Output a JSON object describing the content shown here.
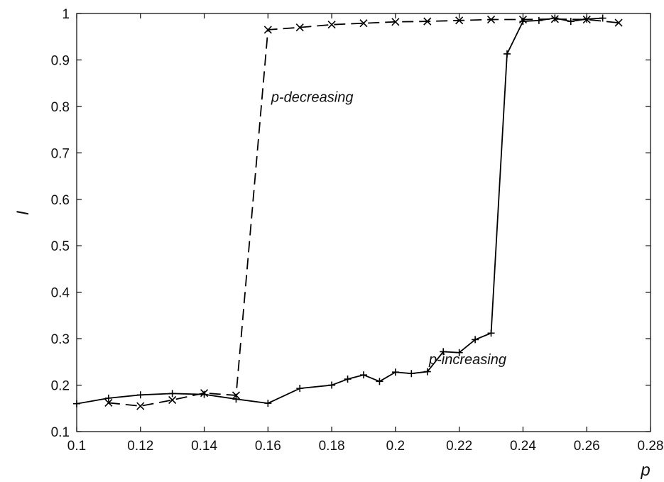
{
  "chart_data": {
    "type": "line",
    "title": "",
    "xlabel": "p",
    "ylabel": "I",
    "xlim": [
      0.1,
      0.28
    ],
    "ylim": [
      0.1,
      1.0
    ],
    "x_ticks": [
      0.1,
      0.12,
      0.14,
      0.16,
      0.18,
      0.2,
      0.22,
      0.24,
      0.26,
      0.28
    ],
    "x_tick_labels": [
      "0.1",
      "0.12",
      "0.14",
      "0.16",
      "0.18",
      "0.2",
      "0.22",
      "0.24",
      "0.26",
      "0.28"
    ],
    "y_ticks": [
      0.1,
      0.2,
      0.3,
      0.4,
      0.5,
      0.6,
      0.7,
      0.8,
      0.9,
      1.0
    ],
    "y_tick_labels": [
      "0.1",
      "0.2",
      "0.3",
      "0.4",
      "0.5",
      "0.6",
      "0.7",
      "0.8",
      "0.9",
      "1"
    ],
    "grid": false,
    "legend": "none",
    "annotations": [
      {
        "text": "p-decreasing",
        "x": 0.161,
        "y": 0.81
      },
      {
        "text": "p-increasing",
        "x": 0.2105,
        "y": 0.245
      }
    ],
    "series": [
      {
        "line_style": "solid",
        "marker": "plus",
        "x": [
          0.1,
          0.11,
          0.12,
          0.13,
          0.14,
          0.15,
          0.16,
          0.17,
          0.18,
          0.185,
          0.19,
          0.195,
          0.2,
          0.205,
          0.21,
          0.215,
          0.22,
          0.225,
          0.23,
          0.235,
          0.24,
          0.245,
          0.25,
          0.255,
          0.26,
          0.265
        ],
        "y": [
          0.16,
          0.172,
          0.179,
          0.182,
          0.18,
          0.17,
          0.161,
          0.193,
          0.2,
          0.213,
          0.222,
          0.208,
          0.228,
          0.225,
          0.229,
          0.272,
          0.27,
          0.298,
          0.312,
          0.913,
          0.983,
          0.985,
          0.99,
          0.983,
          0.988,
          0.99
        ]
      },
      {
        "line_style": "dashed",
        "marker": "cross",
        "x": [
          0.11,
          0.12,
          0.13,
          0.14,
          0.15,
          0.16,
          0.17,
          0.18,
          0.19,
          0.2,
          0.21,
          0.22,
          0.23,
          0.24,
          0.25,
          0.26,
          0.27
        ],
        "y": [
          0.162,
          0.155,
          0.168,
          0.183,
          0.178,
          0.965,
          0.97,
          0.976,
          0.979,
          0.982,
          0.983,
          0.985,
          0.987,
          0.987,
          0.988,
          0.987,
          0.98
        ]
      }
    ]
  }
}
